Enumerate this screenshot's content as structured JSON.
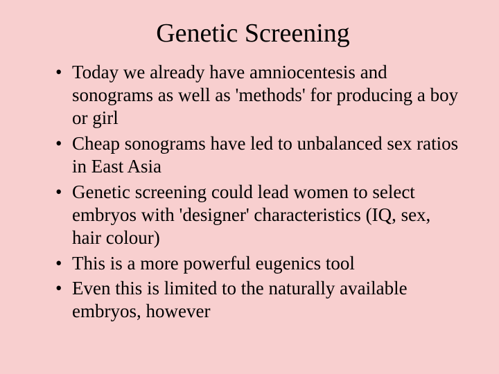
{
  "slide": {
    "title": "Genetic Screening",
    "bullets": [
      "Today we already have amniocentesis and sonograms as well as 'methods' for producing a boy or girl",
      "Cheap sonograms have led to unbalanced sex ratios in East Asia",
      "Genetic screening could lead women to select embryos with 'designer' characteristics (IQ, sex, hair colour)",
      "This is a more powerful eugenics tool",
      "Even this is limited to the naturally available embryos, however"
    ],
    "background_color": "#f8cfcf",
    "text_color": "#000000",
    "title_fontsize": 38,
    "bullet_fontsize": 27,
    "font_family": "Times New Roman"
  }
}
